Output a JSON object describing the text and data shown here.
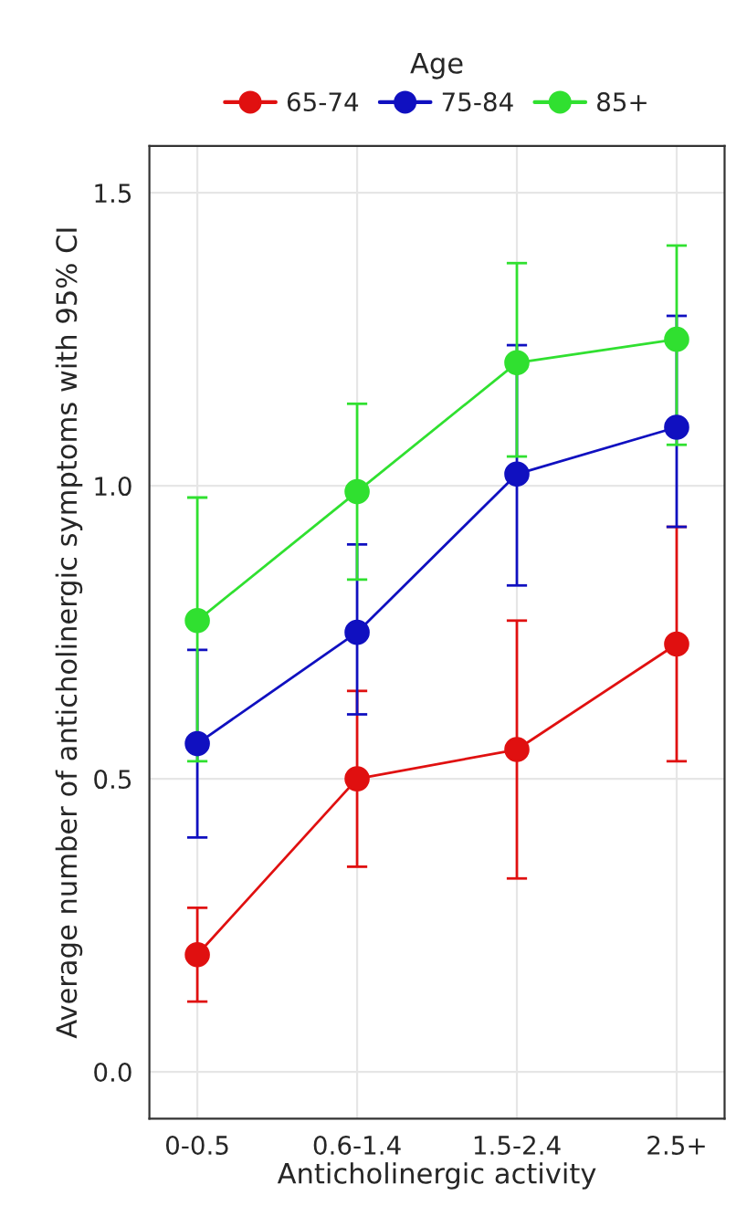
{
  "chart_data": {
    "type": "line",
    "xlabel": "Anticholinergic activity",
    "ylabel": "Average number of anticholinergic symptoms with 95% CI",
    "legend_title": "Age",
    "categories": [
      "0-0.5",
      "0.6-1.4",
      "1.5-2.4",
      "2.5+"
    ],
    "series": [
      {
        "name": "65-74",
        "color": "#e01010",
        "values": [
          0.2,
          0.5,
          0.55,
          0.73
        ],
        "errors": [
          [
            0.12,
            0.28
          ],
          [
            0.35,
            0.65
          ],
          [
            0.33,
            0.77
          ],
          [
            0.53,
            0.93
          ]
        ]
      },
      {
        "name": "75-84",
        "color": "#1010c0",
        "values": [
          0.56,
          0.75,
          1.02,
          1.1
        ],
        "errors": [
          [
            0.4,
            0.72
          ],
          [
            0.61,
            0.9
          ],
          [
            0.83,
            1.24
          ],
          [
            0.93,
            1.29
          ]
        ]
      },
      {
        "name": "85+",
        "color": "#30e030",
        "values": [
          0.77,
          0.99,
          1.21,
          1.25
        ],
        "errors": [
          [
            0.53,
            0.98
          ],
          [
            0.84,
            1.14
          ],
          [
            1.05,
            1.38
          ],
          [
            1.07,
            1.41
          ]
        ]
      }
    ],
    "ylim": [
      -0.08,
      1.58
    ],
    "yticks": [
      {
        "value": 0,
        "label": "0.0"
      },
      0.5,
      {
        "value": 1,
        "label": "1.0"
      },
      1.5
    ],
    "grid": true,
    "legend": "top",
    "marker": "circle",
    "line_style": "solid"
  }
}
